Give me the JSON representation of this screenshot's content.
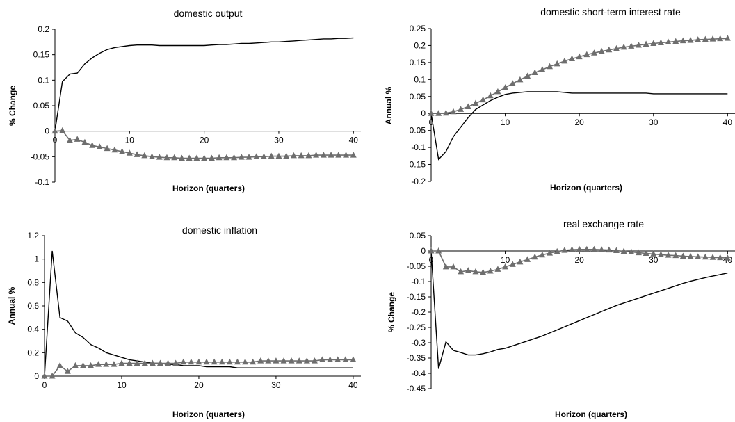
{
  "chart_data": [
    {
      "type": "line",
      "title": "domestic output",
      "xlabel": "Horizon (quarters)",
      "ylabel": "% Change",
      "xlim": [
        0,
        41
      ],
      "ylim": [
        -0.1,
        0.2
      ],
      "xticks": [
        "0",
        "10",
        "20",
        "30",
        "40"
      ],
      "yticks": [
        "0.2",
        "0.15",
        "0.1",
        "0.05",
        "0",
        "-0.05",
        "-0.1"
      ],
      "ytick_values": [
        0.2,
        0.15,
        0.1,
        0.05,
        0,
        -0.05,
        -0.1
      ],
      "x": [
        0,
        1,
        2,
        3,
        4,
        5,
        6,
        7,
        8,
        9,
        10,
        11,
        12,
        13,
        14,
        15,
        16,
        17,
        18,
        19,
        20,
        21,
        22,
        23,
        24,
        25,
        26,
        27,
        28,
        29,
        30,
        31,
        32,
        33,
        34,
        35,
        36,
        37,
        38,
        39,
        40
      ],
      "series": [
        {
          "values": [
            0,
            0.097,
            0.112,
            0.114,
            0.132,
            0.144,
            0.153,
            0.16,
            0.164,
            0.166,
            0.168,
            0.169,
            0.169,
            0.169,
            0.168,
            0.168,
            0.168,
            0.168,
            0.168,
            0.168,
            0.168,
            0.169,
            0.17,
            0.17,
            0.171,
            0.172,
            0.172,
            0.173,
            0.174,
            0.175,
            0.175,
            0.176,
            0.177,
            0.178,
            0.179,
            0.18,
            0.181,
            0.181,
            0.182,
            0.182,
            0.183
          ],
          "color": "#000000",
          "marker": "none"
        },
        {
          "values": [
            0,
            0.001,
            -0.018,
            -0.016,
            -0.022,
            -0.028,
            -0.031,
            -0.034,
            -0.037,
            -0.04,
            -0.043,
            -0.046,
            -0.048,
            -0.05,
            -0.051,
            -0.052,
            -0.052,
            -0.053,
            -0.053,
            -0.053,
            -0.053,
            -0.053,
            -0.052,
            -0.052,
            -0.052,
            -0.051,
            -0.051,
            -0.05,
            -0.05,
            -0.049,
            -0.049,
            -0.049,
            -0.048,
            -0.048,
            -0.048,
            -0.047,
            -0.047,
            -0.047,
            -0.047,
            -0.047,
            -0.047
          ],
          "color": "#6e6e6e",
          "marker": "triangle"
        }
      ]
    },
    {
      "type": "line",
      "title": "domestic short-term interest rate",
      "xlabel": "Horizon (quarters)",
      "ylabel": "Annual %",
      "xlim": [
        0,
        41
      ],
      "ylim": [
        -0.2,
        0.25
      ],
      "xticks": [
        "0",
        "10",
        "20",
        "30",
        "40"
      ],
      "yticks": [
        "0.25",
        "0.2",
        "0.15",
        "0.1",
        "0.05",
        "0",
        "-0.05",
        "-0.1",
        "-0.15",
        "-0.2"
      ],
      "ytick_values": [
        0.25,
        0.2,
        0.15,
        0.1,
        0.05,
        0,
        -0.05,
        -0.1,
        -0.15,
        -0.2
      ],
      "x": [
        0,
        1,
        2,
        3,
        4,
        5,
        6,
        7,
        8,
        9,
        10,
        11,
        12,
        13,
        14,
        15,
        16,
        17,
        18,
        19,
        20,
        21,
        22,
        23,
        24,
        25,
        26,
        27,
        28,
        29,
        30,
        31,
        32,
        33,
        34,
        35,
        36,
        37,
        38,
        39,
        40
      ],
      "series": [
        {
          "values": [
            0,
            -0.135,
            -0.112,
            -0.068,
            -0.04,
            -0.012,
            0.012,
            0.025,
            0.038,
            0.048,
            0.056,
            0.06,
            0.062,
            0.064,
            0.064,
            0.064,
            0.064,
            0.064,
            0.062,
            0.06,
            0.06,
            0.06,
            0.06,
            0.06,
            0.06,
            0.06,
            0.06,
            0.06,
            0.06,
            0.06,
            0.058,
            0.058,
            0.058,
            0.058,
            0.058,
            0.058,
            0.058,
            0.058,
            0.058,
            0.058,
            0.058
          ],
          "color": "#000000",
          "marker": "none"
        },
        {
          "values": [
            0,
            0.0,
            0.001,
            0.005,
            0.012,
            0.02,
            0.03,
            0.04,
            0.052,
            0.064,
            0.076,
            0.088,
            0.099,
            0.11,
            0.12,
            0.129,
            0.138,
            0.146,
            0.154,
            0.161,
            0.167,
            0.173,
            0.178,
            0.183,
            0.187,
            0.191,
            0.195,
            0.198,
            0.201,
            0.204,
            0.206,
            0.208,
            0.21,
            0.212,
            0.214,
            0.215,
            0.217,
            0.218,
            0.219,
            0.22,
            0.221
          ],
          "color": "#6e6e6e",
          "marker": "triangle"
        }
      ]
    },
    {
      "type": "line",
      "title": "domestic inflation",
      "xlabel": "Horizon (quarters)",
      "ylabel": "Annual %",
      "xlim": [
        0,
        41
      ],
      "ylim": [
        0,
        1.2
      ],
      "xticks": [
        "0",
        "10",
        "20",
        "30",
        "40"
      ],
      "yticks": [
        "1.2",
        "1",
        "0.8",
        "0.6",
        "0.4",
        "0.2",
        "0"
      ],
      "ytick_values": [
        1.2,
        1.0,
        0.8,
        0.6,
        0.4,
        0.2,
        0
      ],
      "x": [
        0,
        1,
        2,
        3,
        4,
        5,
        6,
        7,
        8,
        9,
        10,
        11,
        12,
        13,
        14,
        15,
        16,
        17,
        18,
        19,
        20,
        21,
        22,
        23,
        24,
        25,
        26,
        27,
        28,
        29,
        30,
        31,
        32,
        33,
        34,
        35,
        36,
        37,
        38,
        39,
        40
      ],
      "series": [
        {
          "values": [
            0,
            1.07,
            0.5,
            0.47,
            0.37,
            0.33,
            0.27,
            0.24,
            0.2,
            0.18,
            0.16,
            0.14,
            0.13,
            0.12,
            0.11,
            0.11,
            0.1,
            0.1,
            0.09,
            0.09,
            0.09,
            0.08,
            0.08,
            0.08,
            0.08,
            0.07,
            0.07,
            0.07,
            0.07,
            0.07,
            0.07,
            0.07,
            0.07,
            0.07,
            0.07,
            0.07,
            0.07,
            0.07,
            0.07,
            0.07,
            0.07
          ],
          "color": "#000000",
          "marker": "none"
        },
        {
          "values": [
            0,
            0.0,
            0.09,
            0.04,
            0.09,
            0.09,
            0.09,
            0.1,
            0.1,
            0.1,
            0.11,
            0.11,
            0.11,
            0.11,
            0.11,
            0.11,
            0.11,
            0.11,
            0.12,
            0.12,
            0.12,
            0.12,
            0.12,
            0.12,
            0.12,
            0.12,
            0.12,
            0.12,
            0.13,
            0.13,
            0.13,
            0.13,
            0.13,
            0.13,
            0.13,
            0.13,
            0.14,
            0.14,
            0.14,
            0.14,
            0.14
          ],
          "color": "#6e6e6e",
          "marker": "triangle"
        }
      ]
    },
    {
      "type": "line",
      "title": "real exchange rate",
      "xlabel": "Horizon (quarters)",
      "ylabel": "% Change",
      "xlim": [
        0,
        41
      ],
      "ylim": [
        -0.45,
        0.05
      ],
      "xticks": [
        "0",
        "10",
        "20",
        "30",
        "40"
      ],
      "yticks": [
        "0.05",
        "0",
        "-0.05",
        "-0.1",
        "-0.15",
        "-0.2",
        "-0.25",
        "-0.3",
        "-0.35",
        "-0.4",
        "-0.45"
      ],
      "ytick_values": [
        0.05,
        0,
        -0.05,
        -0.1,
        -0.15,
        -0.2,
        -0.25,
        -0.3,
        -0.35,
        -0.4,
        -0.45
      ],
      "x": [
        0,
        1,
        2,
        3,
        4,
        5,
        6,
        7,
        8,
        9,
        10,
        11,
        12,
        13,
        14,
        15,
        16,
        17,
        18,
        19,
        20,
        21,
        22,
        23,
        24,
        25,
        26,
        27,
        28,
        29,
        30,
        31,
        32,
        33,
        34,
        35,
        36,
        37,
        38,
        39,
        40
      ],
      "series": [
        {
          "values": [
            0,
            -0.385,
            -0.297,
            -0.325,
            -0.332,
            -0.34,
            -0.34,
            -0.336,
            -0.33,
            -0.322,
            -0.318,
            -0.31,
            -0.302,
            -0.294,
            -0.286,
            -0.278,
            -0.268,
            -0.258,
            -0.248,
            -0.238,
            -0.228,
            -0.218,
            -0.208,
            -0.198,
            -0.188,
            -0.178,
            -0.17,
            -0.162,
            -0.154,
            -0.146,
            -0.138,
            -0.13,
            -0.122,
            -0.114,
            -0.106,
            -0.099,
            -0.093,
            -0.087,
            -0.082,
            -0.077,
            -0.072
          ],
          "color": "#000000",
          "marker": "none"
        },
        {
          "values": [
            0,
            0.0,
            -0.052,
            -0.052,
            -0.068,
            -0.064,
            -0.068,
            -0.07,
            -0.066,
            -0.06,
            -0.052,
            -0.044,
            -0.036,
            -0.028,
            -0.02,
            -0.013,
            -0.007,
            -0.002,
            0.002,
            0.004,
            0.005,
            0.005,
            0.005,
            0.004,
            0.003,
            0.001,
            -0.001,
            -0.003,
            -0.006,
            -0.008,
            -0.01,
            -0.012,
            -0.014,
            -0.015,
            -0.017,
            -0.018,
            -0.019,
            -0.02,
            -0.021,
            -0.022,
            -0.023
          ],
          "color": "#6e6e6e",
          "marker": "triangle"
        }
      ]
    }
  ]
}
